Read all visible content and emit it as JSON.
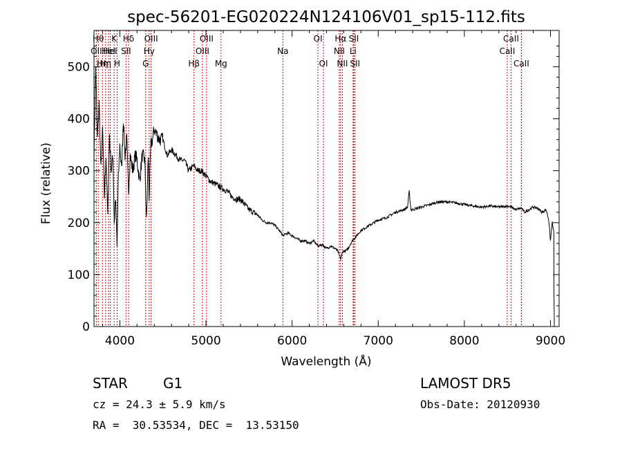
{
  "chart_data": {
    "type": "line",
    "title": "spec-56201-EG020224N124106V01_sp15-112.fits",
    "xlabel": "Wavelength (Å)",
    "ylabel": "Flux (relative)",
    "xlim": [
      3700,
      9100
    ],
    "ylim": [
      0,
      570
    ],
    "xticks": [
      4000,
      5000,
      6000,
      7000,
      8000,
      9000
    ],
    "yticks": [
      0,
      100,
      200,
      300,
      400,
      500
    ],
    "grid": false,
    "legend": "none",
    "line_color": "#000000",
    "marker_color": "#cc0000",
    "series": [
      {
        "x": [
          3700,
          3720,
          3740,
          3760,
          3780,
          3800,
          3820,
          3840,
          3860,
          3880,
          3900,
          3920,
          3935,
          3950,
          3968,
          3980,
          4000,
          4020,
          4040,
          4060,
          4080,
          4101,
          4120,
          4150,
          4180,
          4200,
          4230,
          4260,
          4290,
          4310,
          4330,
          4340,
          4360,
          4380,
          4400,
          4430,
          4460,
          4500,
          4550,
          4600,
          4650,
          4700,
          4750,
          4800,
          4861,
          4900,
          4950,
          5000,
          5050,
          5100,
          5150,
          5200,
          5250,
          5300,
          5350,
          5400,
          5450,
          5500,
          5550,
          5600,
          5650,
          5700,
          5750,
          5800,
          5850,
          5893,
          5950,
          6000,
          6050,
          6100,
          6150,
          6200,
          6250,
          6300,
          6350,
          6400,
          6450,
          6500,
          6530,
          6563,
          6590,
          6620,
          6650,
          6680,
          6700,
          6750,
          6800,
          6850,
          6900,
          6950,
          7000,
          7100,
          7200,
          7300,
          7340,
          7360,
          7380,
          7400,
          7500,
          7600,
          7700,
          7800,
          7900,
          8000,
          8100,
          8200,
          8300,
          8400,
          8500,
          8542,
          8600,
          8662,
          8700,
          8750,
          8800,
          8850,
          8900,
          8950,
          8980,
          9000,
          9020,
          9040
        ],
        "y": [
          330,
          500,
          360,
          430,
          300,
          380,
          250,
          330,
          210,
          370,
          300,
          330,
          200,
          250,
          150,
          270,
          350,
          300,
          400,
          330,
          360,
          260,
          330,
          300,
          330,
          320,
          280,
          330,
          320,
          200,
          330,
          250,
          350,
          360,
          380,
          370,
          360,
          360,
          330,
          340,
          330,
          320,
          320,
          300,
          310,
          300,
          300,
          290,
          280,
          275,
          270,
          265,
          260,
          250,
          245,
          245,
          235,
          225,
          220,
          215,
          205,
          200,
          200,
          195,
          185,
          175,
          180,
          175,
          170,
          165,
          165,
          160,
          165,
          155,
          158,
          150,
          155,
          150,
          145,
          130,
          145,
          145,
          150,
          160,
          165,
          175,
          185,
          190,
          195,
          200,
          205,
          210,
          220,
          225,
          230,
          260,
          225,
          225,
          230,
          235,
          240,
          240,
          238,
          235,
          232,
          230,
          232,
          230,
          232,
          230,
          225,
          228,
          220,
          225,
          230,
          228,
          220,
          225,
          205,
          165,
          200,
          180
        ]
      }
    ],
    "lines": [
      {
        "wl": 3727,
        "label": "OII",
        "row": 1
      },
      {
        "wl": 3750,
        "label": "Hθ",
        "row": 0
      },
      {
        "wl": 3798,
        "label": "Hη",
        "row": 2
      },
      {
        "wl": 3835,
        "label": "Hη",
        "row": 2
      },
      {
        "wl": 3869,
        "label": "HeI",
        "row": 1
      },
      {
        "wl": 3889,
        "label": "HeI",
        "row": 1
      },
      {
        "wl": 3934,
        "label": "K",
        "row": 0
      },
      {
        "wl": 3968,
        "label": "H",
        "row": 2
      },
      {
        "wl": 4072,
        "label": "SII",
        "row": 1
      },
      {
        "wl": 4101,
        "label": "Hδ",
        "row": 0
      },
      {
        "wl": 4300,
        "label": "G",
        "row": 2
      },
      {
        "wl": 4340,
        "label": "Hγ",
        "row": 1
      },
      {
        "wl": 4363,
        "label": "OIII",
        "row": 0
      },
      {
        "wl": 4861,
        "label": "Hβ",
        "row": 2
      },
      {
        "wl": 4959,
        "label": "OIII",
        "row": 1
      },
      {
        "wl": 5007,
        "label": "OIII",
        "row": 0
      },
      {
        "wl": 5175,
        "label": "Mg",
        "row": 2
      },
      {
        "wl": 5893,
        "label": "Na",
        "row": 1
      },
      {
        "wl": 6300,
        "label": "OI",
        "row": 0
      },
      {
        "wl": 6364,
        "label": "OI",
        "row": 2
      },
      {
        "wl": 6548,
        "label": "NII",
        "row": 1
      },
      {
        "wl": 6563,
        "label": "Hα",
        "row": 0
      },
      {
        "wl": 6584,
        "label": "NII",
        "row": 2
      },
      {
        "wl": 6708,
        "label": "Li",
        "row": 1
      },
      {
        "wl": 6717,
        "label": "SII",
        "row": 0
      },
      {
        "wl": 6731,
        "label": "SII",
        "row": 2
      },
      {
        "wl": 8498,
        "label": "CaII",
        "row": 1
      },
      {
        "wl": 8542,
        "label": "CaII",
        "row": 0
      },
      {
        "wl": 8662,
        "label": "CaII",
        "row": 2
      }
    ]
  },
  "info": {
    "class_label": "STAR",
    "subclass": "G1",
    "survey": "LAMOST DR5",
    "cz": "cz = 24.3 ± 5.9 km/s",
    "obs_date": "Obs-Date: 20120930",
    "radec": "RA =  30.53534, DEC =  13.53150"
  }
}
